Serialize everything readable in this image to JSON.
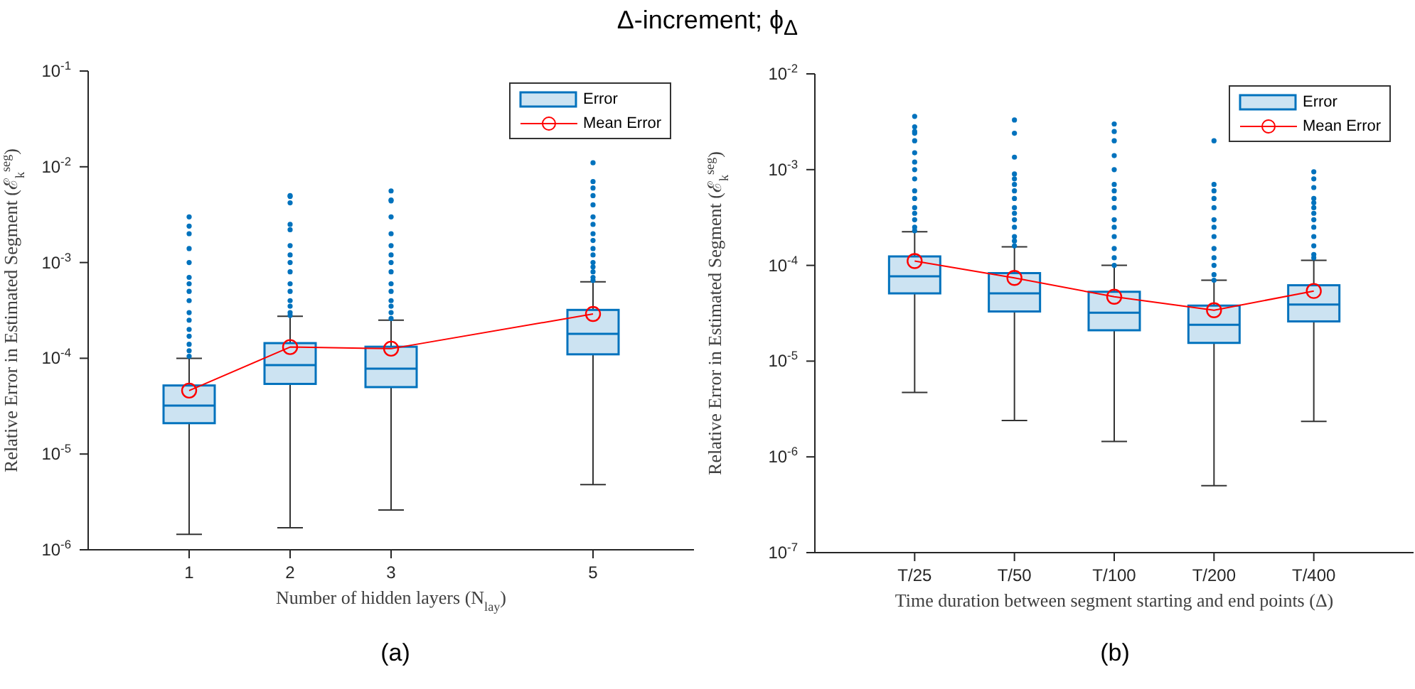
{
  "chart_data": [
    {
      "type": "box",
      "title": "Δ-increment; ϕ$_{Δ}$",
      "xlabel": "Number of hidden layers (N$_{lay}$)",
      "ylabel": "Relative Error in Estimated Segment (ℰ$_{k}$$^{seg}$)",
      "annotations": [
        "(a)"
      ],
      "x": [
        1,
        2,
        3,
        5
      ],
      "xlim": [
        0,
        6
      ],
      "xticks": [
        1,
        2,
        3,
        5
      ],
      "ylim": [
        1e-06,
        0.1
      ],
      "yticks": [
        {
          "value": 1e-06,
          "label": "10$^{-6}$"
        },
        {
          "value": 1e-05,
          "label": "10$^{-5}$"
        },
        {
          "value": 0.0001,
          "label": "10$^{-4}$"
        },
        {
          "value": 0.001,
          "label": "10$^{-3}$"
        },
        {
          "value": 0.01,
          "label": "10$^{-2}$"
        },
        {
          "value": 0.1,
          "label": "10$^{-1}$"
        }
      ],
      "log": true,
      "legend": "top right",
      "series": [
        {
          "name": "Error",
          "color": "#0072bd",
          "boxes": [
            {
              "low": 1.45e-06,
              "q1": 2.1e-05,
              "median": 3.2e-05,
              "q3": 5.2e-05,
              "high": 0.0001,
              "outliers": [
                0.003,
                0.0024,
                0.002,
                0.0014,
                0.001,
                0.0007,
                0.0006,
                0.0005,
                0.0004,
                0.0003,
                0.00025,
                0.0002,
                0.00017,
                0.00014,
                0.00012,
                0.000105
              ]
            },
            {
              "low": 1.7e-06,
              "q1": 5.4e-05,
              "median": 8.5e-05,
              "q3": 0.000144,
              "high": 0.000275,
              "outliers": [
                0.005,
                0.0042,
                0.0049,
                0.0025,
                0.0022,
                0.0015,
                0.0012,
                0.001,
                0.0008,
                0.0006,
                0.0005,
                0.0004,
                0.00035,
                0.0003,
                0.00028
              ]
            },
            {
              "low": 2.6e-06,
              "q1": 5e-05,
              "median": 7.8e-05,
              "q3": 0.000132,
              "high": 0.00025,
              "outliers": [
                0.0056,
                0.0045,
                0.0044,
                0.003,
                0.002,
                0.0015,
                0.0012,
                0.001,
                0.0008,
                0.0006,
                0.0005,
                0.0004,
                0.00035,
                0.0003,
                0.00026
              ]
            },
            {
              "low": 4.8e-06,
              "q1": 0.00011,
              "median": 0.00018,
              "q3": 0.00032,
              "high": 0.00063,
              "outliers": [
                0.011,
                0.007,
                0.006,
                0.005,
                0.004,
                0.003,
                0.0025,
                0.002,
                0.0017,
                0.0014,
                0.0012,
                0.001,
                0.0009,
                0.0008,
                0.0007,
                0.00065
              ]
            }
          ]
        },
        {
          "name": "Mean Error",
          "type": "line",
          "color": "#ff0000",
          "marker": "circle",
          "values": [
            4.6e-05,
            0.000131,
            0.000126,
            0.00029
          ]
        }
      ]
    },
    {
      "type": "box",
      "xlabel": "Time duration between segment starting and end points (Δ)",
      "ylabel": "Relative Error in Estimated Segment (ℰ$_{k}$$^{seg}$)",
      "annotations": [
        "(b)"
      ],
      "categories": [
        "T/25",
        "T/50",
        "T/100",
        "T/200",
        "T/400"
      ],
      "ylim": [
        1e-07,
        0.01
      ],
      "yticks": [
        {
          "value": 1e-07,
          "label": "10$^{-7}$"
        },
        {
          "value": 1e-06,
          "label": "10$^{-6}$"
        },
        {
          "value": 1e-05,
          "label": "10$^{-5}$"
        },
        {
          "value": 0.0001,
          "label": "10$^{-4}$"
        },
        {
          "value": 0.001,
          "label": "10$^{-3}$"
        },
        {
          "value": 0.01,
          "label": "10$^{-2}$"
        }
      ],
      "log": true,
      "legend": "top right",
      "series": [
        {
          "name": "Error",
          "color": "#0072bd",
          "boxes": [
            {
              "low": 4.7e-06,
              "q1": 5.1e-05,
              "median": 7.7e-05,
              "q3": 0.000124,
              "high": 0.000225,
              "outliers": [
                0.0036,
                0.0028,
                0.0025,
                0.0024,
                0.002,
                0.0015,
                0.0012,
                0.001,
                0.0008,
                0.0006,
                0.0005,
                0.0004,
                0.00035,
                0.0003,
                0.00025,
                0.00023
              ]
            },
            {
              "low": 2.4e-06,
              "q1": 3.3e-05,
              "median": 5.1e-05,
              "q3": 8.3e-05,
              "high": 0.000156,
              "outliers": [
                0.0033,
                0.0024,
                0.00135,
                0.0009,
                0.0008,
                0.0007,
                0.0006,
                0.0005,
                0.0004,
                0.00035,
                0.0003,
                0.00025,
                0.0002,
                0.00018,
                0.00016
              ]
            },
            {
              "low": 1.45e-06,
              "q1": 2.1e-05,
              "median": 3.2e-05,
              "q3": 5.3e-05,
              "high": 0.0001,
              "outliers": [
                0.003,
                0.0025,
                0.002,
                0.0014,
                0.001,
                0.0007,
                0.0006,
                0.0005,
                0.0004,
                0.0003,
                0.00025,
                0.0002,
                0.00015,
                0.00012,
                0.0001
              ]
            },
            {
              "low": 5e-07,
              "q1": 1.55e-05,
              "median": 2.4e-05,
              "q3": 3.8e-05,
              "high": 7e-05,
              "outliers": [
                0.002,
                0.0007,
                0.0006,
                0.0005,
                0.0004,
                0.0003,
                0.00025,
                0.0002,
                0.00015,
                0.00012,
                0.0001,
                8e-05,
                7e-05
              ]
            },
            {
              "low": 2.35e-06,
              "q1": 2.6e-05,
              "median": 3.9e-05,
              "q3": 6.2e-05,
              "high": 0.000113,
              "outliers": [
                0.00095,
                0.0008,
                0.00065,
                0.0005,
                0.00045,
                0.0004,
                0.00035,
                0.0003,
                0.00025,
                0.0002,
                0.00016,
                0.00013,
                0.00012
              ]
            }
          ]
        },
        {
          "name": "Mean Error",
          "type": "line",
          "color": "#ff0000",
          "marker": "circle",
          "values": [
            0.000111,
            7.4e-05,
            4.7e-05,
            3.4e-05,
            5.4e-05
          ]
        }
      ]
    }
  ]
}
